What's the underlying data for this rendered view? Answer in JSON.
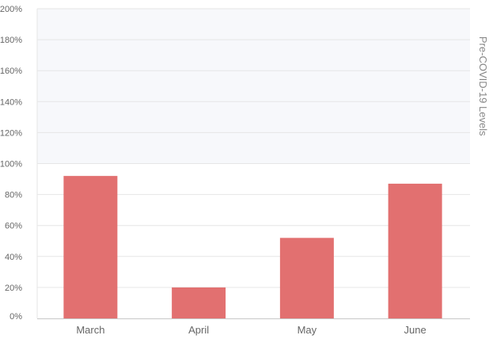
{
  "chart_data": {
    "type": "bar",
    "categories": [
      "March",
      "April",
      "May",
      "June"
    ],
    "values": [
      92,
      20,
      52,
      87
    ],
    "ylim": [
      0,
      200
    ],
    "yticks": [
      "0%",
      "20%",
      "40%",
      "60%",
      "80%",
      "100%",
      "120%",
      "140%",
      "160%",
      "180%",
      "200%"
    ],
    "ytick_values": [
      0,
      20,
      40,
      60,
      80,
      100,
      120,
      140,
      160,
      180,
      200
    ],
    "band": {
      "from": 100,
      "to": 200,
      "label": "Pre-COVID-19 Levels"
    },
    "grid": true,
    "colors": {
      "bar": "#e27070",
      "band": "#f7f8fb",
      "grid": "#e6e6e6",
      "axis": "#c8c8c8"
    }
  }
}
